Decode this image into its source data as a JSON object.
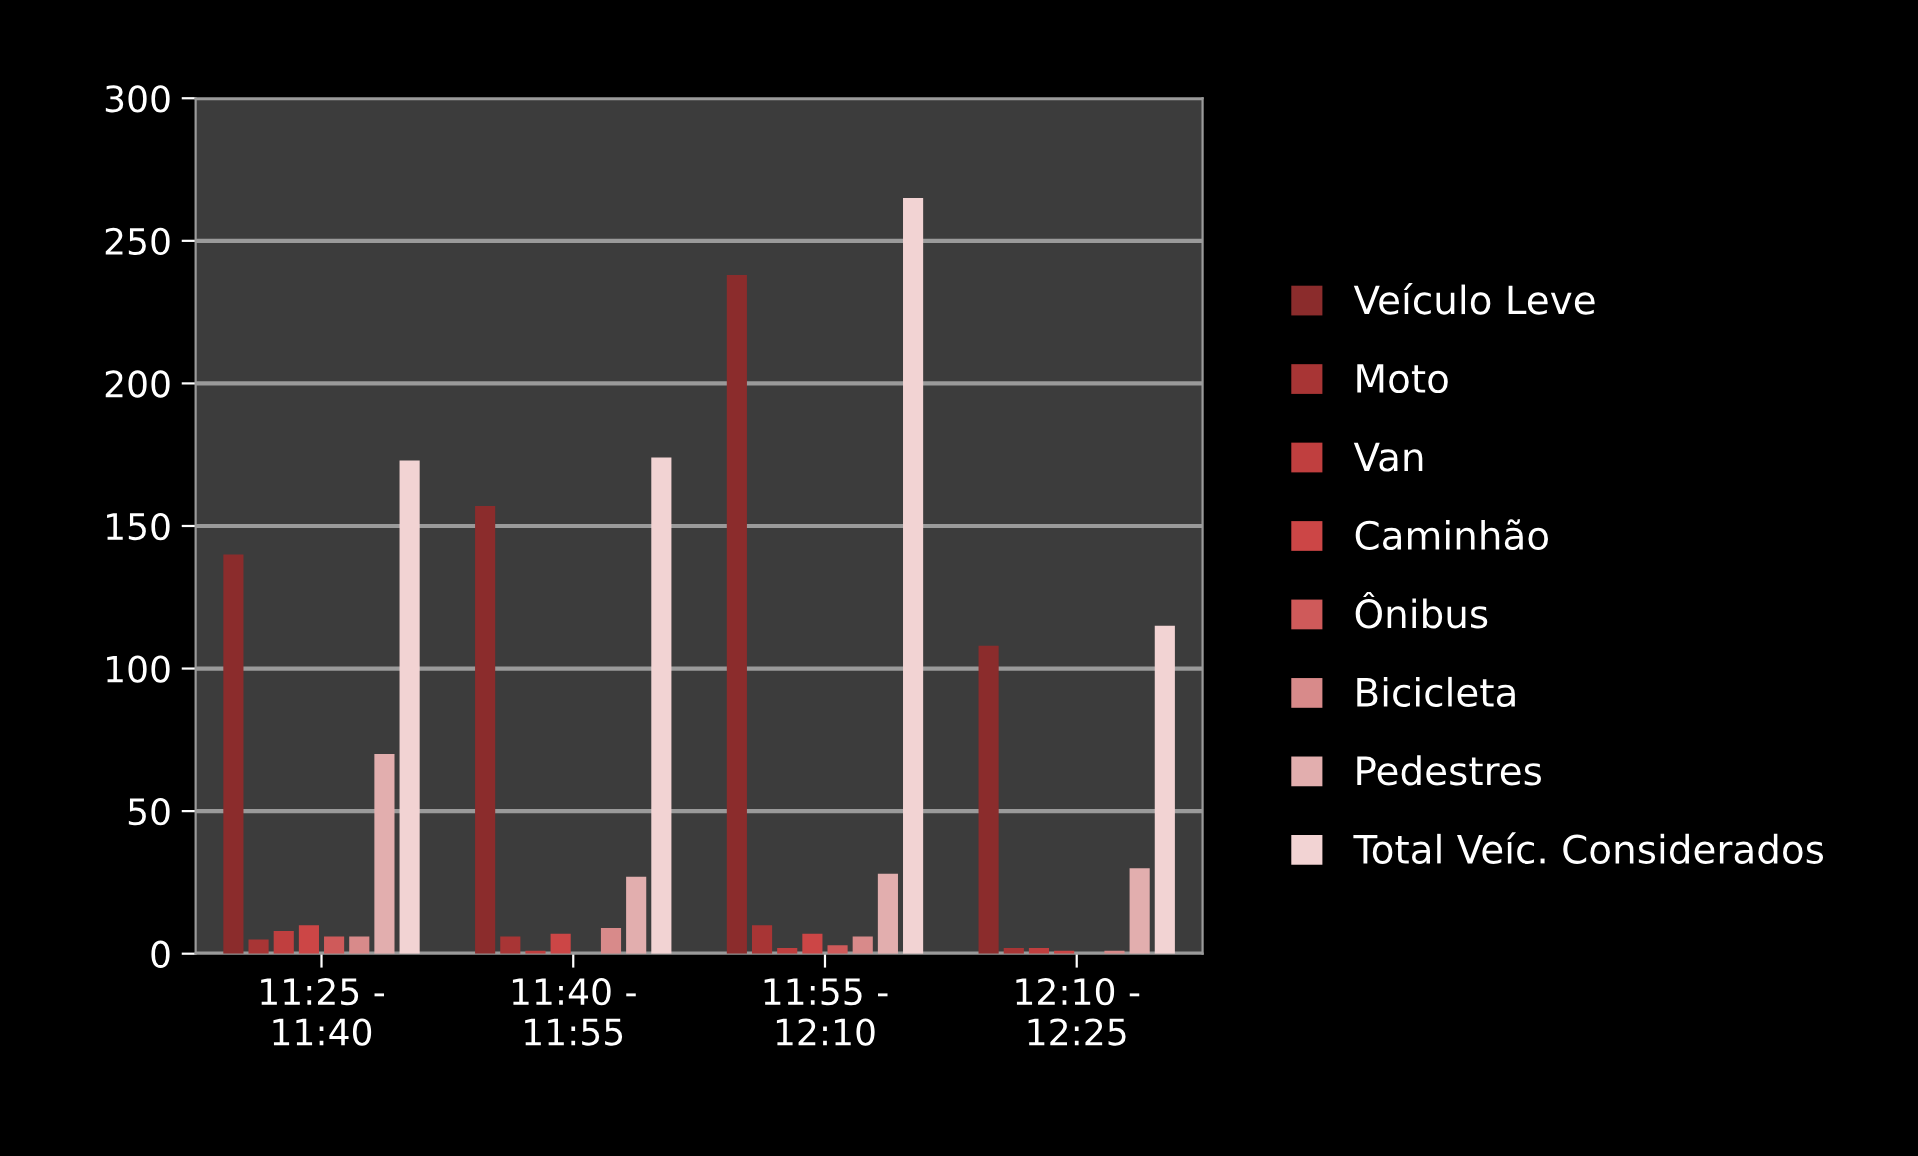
{
  "chart_data": {
    "type": "bar",
    "categories": [
      "11:25 -\n11:40",
      "11:40 -\n11:55",
      "11:55 -\n12:10",
      "12:10 -\n12:25"
    ],
    "series": [
      {
        "name": "Veículo Leve",
        "color": "#8b2c2c",
        "values": [
          140,
          157,
          238,
          108
        ]
      },
      {
        "name": "Moto",
        "color": "#a83535",
        "values": [
          5,
          6,
          10,
          2
        ]
      },
      {
        "name": "Van",
        "color": "#c03f3f",
        "values": [
          8,
          1,
          2,
          2
        ]
      },
      {
        "name": "Caminhão",
        "color": "#cc4646",
        "values": [
          10,
          7,
          7,
          1
        ]
      },
      {
        "name": "Ônibus",
        "color": "#cf5a5a",
        "values": [
          6,
          0,
          3,
          0
        ]
      },
      {
        "name": "Bicicleta",
        "color": "#d88a8a",
        "values": [
          6,
          9,
          6,
          1
        ]
      },
      {
        "name": "Pedestres",
        "color": "#e2aeae",
        "values": [
          70,
          27,
          28,
          30
        ]
      },
      {
        "name": "Total Veíc. Considerados",
        "color": "#f2d3d3",
        "values": [
          173,
          174,
          265,
          115
        ]
      }
    ],
    "ylim": [
      0,
      300
    ],
    "yticks": [
      0,
      50,
      100,
      150,
      200,
      250,
      300
    ],
    "grid": "y",
    "legend": "right"
  }
}
